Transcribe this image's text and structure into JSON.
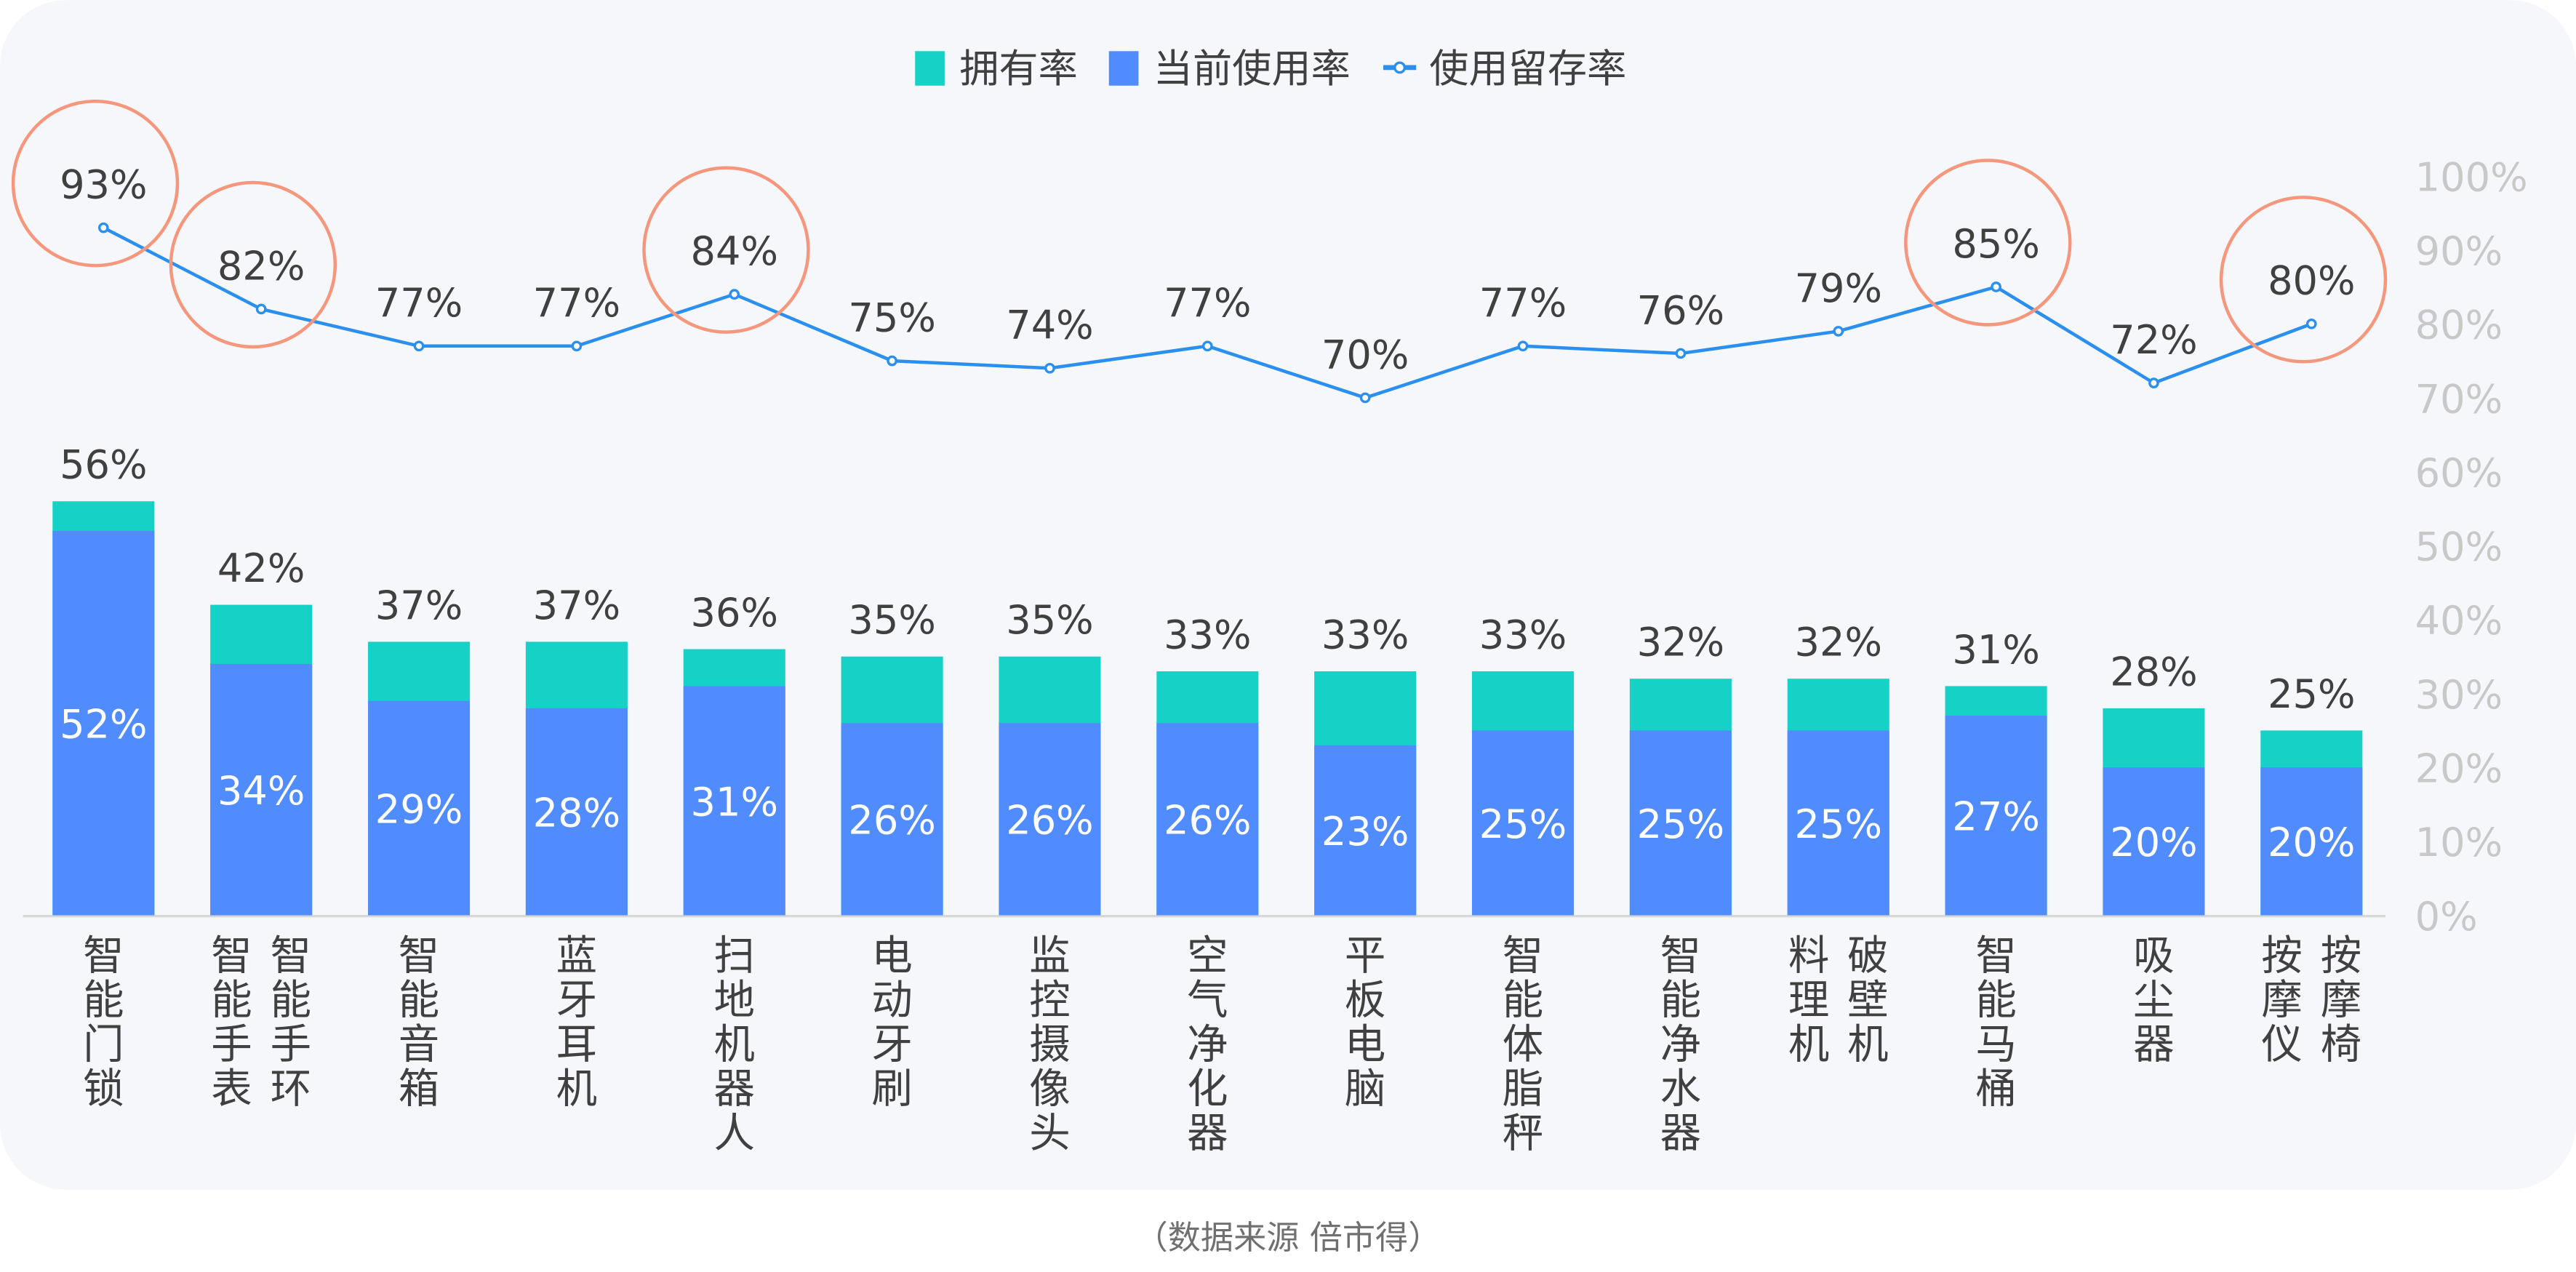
{
  "chart_data": {
    "type": "bar",
    "title": "",
    "legend": {
      "placement": "top-center",
      "items": [
        {
          "name": "拥有率",
          "kind": "bar",
          "color": "#16d1c5"
        },
        {
          "name": "当前使用率",
          "kind": "bar",
          "color": "#518cff"
        },
        {
          "name": "使用留存率",
          "kind": "line",
          "color": "#2b8fef"
        }
      ]
    },
    "categories": [
      [
        "智能门锁"
      ],
      [
        "智能手表",
        "智能手环"
      ],
      [
        "智能音箱"
      ],
      [
        "蓝牙耳机"
      ],
      [
        "扫地机器人"
      ],
      [
        "电动牙刷"
      ],
      [
        "监控摄像头"
      ],
      [
        "空气净化器"
      ],
      [
        "平板电脑"
      ],
      [
        "智能体脂秤"
      ],
      [
        "智能净水器"
      ],
      [
        "料理机",
        "破壁机"
      ],
      [
        "智能马桶"
      ],
      [
        "吸尘器"
      ],
      [
        "按摩仪",
        "按摩椅"
      ]
    ],
    "series": [
      {
        "name": "拥有率",
        "type": "bar-stacked-total",
        "values": [
          56,
          42,
          37,
          37,
          36,
          35,
          35,
          33,
          33,
          33,
          32,
          32,
          31,
          28,
          25
        ]
      },
      {
        "name": "当前使用率",
        "type": "bar",
        "values": [
          52,
          34,
          29,
          28,
          31,
          26,
          26,
          26,
          23,
          25,
          25,
          25,
          27,
          20,
          20
        ]
      },
      {
        "name": "使用留存率",
        "type": "line",
        "values": [
          93,
          82,
          77,
          77,
          84,
          75,
          74,
          77,
          70,
          77,
          76,
          79,
          85,
          72,
          80
        ]
      }
    ],
    "highlighted_retention_indices": [
      0,
      1,
      4,
      12,
      14
    ],
    "y_axis_right": {
      "min": 0,
      "max": 100,
      "step": 10,
      "ticks": [
        "0%",
        "10%",
        "20%",
        "30%",
        "40%",
        "50%",
        "60%",
        "70%",
        "80%",
        "90%",
        "100%"
      ]
    },
    "xlabel": "",
    "ylabel": "",
    "grid": false,
    "colors": {
      "owned": "#16d1c5",
      "current": "#518cff",
      "line": "#2b8fef",
      "highlight": "#f4977c",
      "panel": "#f6f7fb",
      "text": "#404040",
      "axis_text": "#c8c8c8"
    }
  },
  "footer": {
    "source": "（数据来源  倍市得）"
  }
}
